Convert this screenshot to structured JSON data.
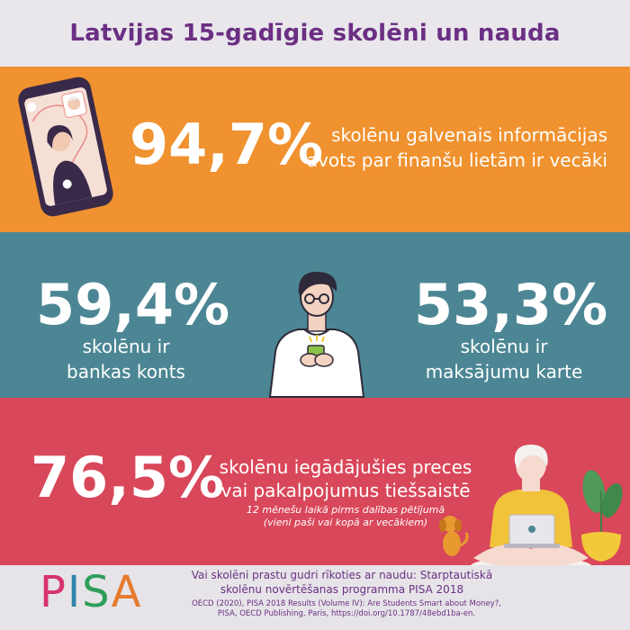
{
  "header": {
    "title": "Latvijas 15-gadīgie skolēni un nauda"
  },
  "stats": {
    "info_source": {
      "value": "94,7%",
      "line1": "skolēnu galvenais informācijas",
      "line2": "avots par finanšu lietām ir vecāki"
    },
    "bank_account": {
      "value": "59,4%",
      "line1": "skolēnu ir",
      "line2": "bankas konts"
    },
    "payment_card": {
      "value": "53,3%",
      "line1": "skolēnu ir",
      "line2": "maksājumu karte"
    },
    "online_purchase": {
      "value": "76,5%",
      "line1": "skolēnu iegādājušies preces",
      "line2": "vai pakalpojumus tiešsaistē",
      "note1": "12 mēnešu laikā pirms dalības pētījumā",
      "note2": "(vieni paši vai kopā ar vecākiem)"
    }
  },
  "footer": {
    "logo_letters": [
      "P",
      "I",
      "S",
      "A"
    ],
    "title_line1": "Vai skolēni prastu gudri rīkoties ar naudu: Starptautiskā",
    "title_line2": "skolēnu novērtēšanas programma PISA 2018",
    "cite_line1": "OECD (2020), PISA 2018 Results (Volume IV): Are Students Smart about Money?,",
    "cite_line2": "PISA, OECD Publishing, Paris, https://doi.org/10.1787/48ebd1ba-en."
  },
  "colors": {
    "header_bg": "#e9e7ec",
    "title": "#6b2f83",
    "orange": "#f0922f",
    "teal": "#4c8694",
    "red": "#d9475a",
    "pisa_p": "#d6336c",
    "pisa_i": "#2e86a8",
    "pisa_s": "#2e9e5b",
    "pisa_a": "#e57a2e"
  },
  "illustrations": {
    "phone": "phone-video-call-illustration",
    "student": "student-with-phone-illustration",
    "laptop_girl": "girl-with-laptop-illustration",
    "dog": "dog-illustration",
    "plant": "potted-plant-illustration"
  }
}
